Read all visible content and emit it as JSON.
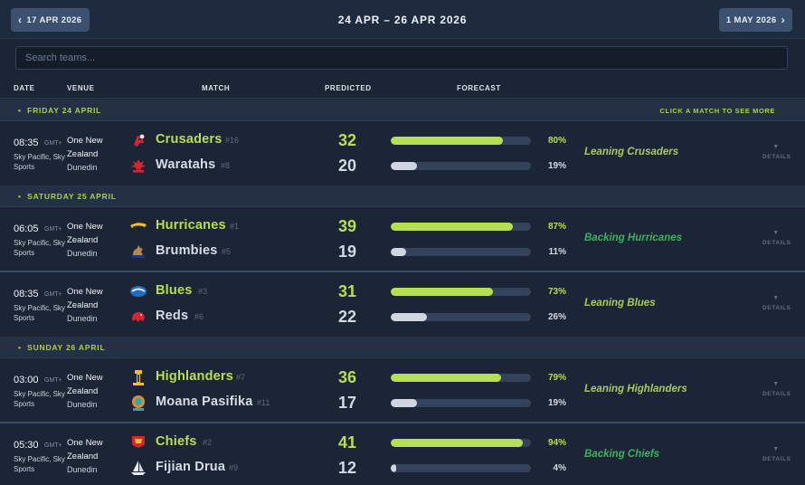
{
  "header": {
    "prev_label": "17 APR 2026",
    "range": "24 APR – 26 APR 2026",
    "next_label": "1 MAY 2026"
  },
  "search": {
    "placeholder": "Search teams..."
  },
  "columns": {
    "date": "DATE",
    "venue": "VENUE",
    "match": "MATCH",
    "predicted": "PREDICTED",
    "forecast": "FORECAST"
  },
  "hint": "CLICK A MATCH TO SEE MORE",
  "details_label": "DETAILS",
  "colors": {
    "accent": "#b7df52",
    "leaning": "#a7cb5e",
    "backing": "#3db25d",
    "background": "#1c2536"
  },
  "days": [
    {
      "label": "FRIDAY 24 APRIL"
    },
    {
      "label": "SATURDAY 25 APRIL"
    },
    {
      "label": "SUNDAY 26 APRIL"
    }
  ],
  "matches": [
    {
      "time": "08:35",
      "gmt": "GMT+",
      "broadcast": "Sky Pacific, Sky Sports",
      "venue": "One New Zealand",
      "city": "Dunedin",
      "home": {
        "name": "Crusaders",
        "rank": "#16",
        "score": "32",
        "pct": "80%",
        "prob": 0.8,
        "icon": "crusaders-logo-icon"
      },
      "away": {
        "name": "Waratahs",
        "rank": "#8",
        "score": "20",
        "pct": "19%",
        "prob": 0.19,
        "icon": "waratahs-logo-icon"
      },
      "verdict": "Leaning Crusaders",
      "verdict_type": "leaning"
    },
    {
      "time": "06:05",
      "gmt": "GMT+",
      "broadcast": "Sky Pacific, Sky Sports",
      "venue": "One New Zealand",
      "city": "Dunedin",
      "home": {
        "name": "Hurricanes",
        "rank": "#1",
        "score": "39",
        "pct": "87%",
        "prob": 0.87,
        "icon": "hurricanes-logo-icon"
      },
      "away": {
        "name": "Brumbies",
        "rank": "#5",
        "score": "19",
        "pct": "11%",
        "prob": 0.11,
        "icon": "brumbies-logo-icon"
      },
      "verdict": "Backing Hurricanes",
      "verdict_type": "backing"
    },
    {
      "time": "08:35",
      "gmt": "GMT+",
      "broadcast": "Sky Pacific, Sky Sports",
      "venue": "One New Zealand",
      "city": "Dunedin",
      "home": {
        "name": "Blues",
        "rank": "#3",
        "score": "31",
        "pct": "73%",
        "prob": 0.73,
        "icon": "blues-logo-icon"
      },
      "away": {
        "name": "Reds",
        "rank": "#6",
        "score": "22",
        "pct": "26%",
        "prob": 0.26,
        "icon": "reds-logo-icon"
      },
      "verdict": "Leaning Blues",
      "verdict_type": "leaning"
    },
    {
      "time": "03:00",
      "gmt": "GMT+",
      "broadcast": "Sky Pacific, Sky Sports",
      "venue": "One New Zealand",
      "city": "Dunedin",
      "home": {
        "name": "Highlanders",
        "rank": "#7",
        "score": "36",
        "pct": "79%",
        "prob": 0.79,
        "icon": "highlanders-logo-icon"
      },
      "away": {
        "name": "Moana Pasifika",
        "rank": "#11",
        "score": "17",
        "pct": "19%",
        "prob": 0.19,
        "icon": "moana-pasifika-logo-icon"
      },
      "verdict": "Leaning Highlanders",
      "verdict_type": "leaning"
    },
    {
      "time": "05:30",
      "gmt": "GMT+",
      "broadcast": "Sky Pacific, Sky Sports",
      "venue": "One New Zealand",
      "city": "Dunedin",
      "home": {
        "name": "Chiefs",
        "rank": "#2",
        "score": "41",
        "pct": "94%",
        "prob": 0.94,
        "icon": "chiefs-logo-icon"
      },
      "away": {
        "name": "Fijian Drua",
        "rank": "#9",
        "score": "12",
        "pct": "4%",
        "prob": 0.04,
        "icon": "fijian-drua-logo-icon"
      },
      "verdict": "Backing Chiefs",
      "verdict_type": "backing"
    }
  ]
}
